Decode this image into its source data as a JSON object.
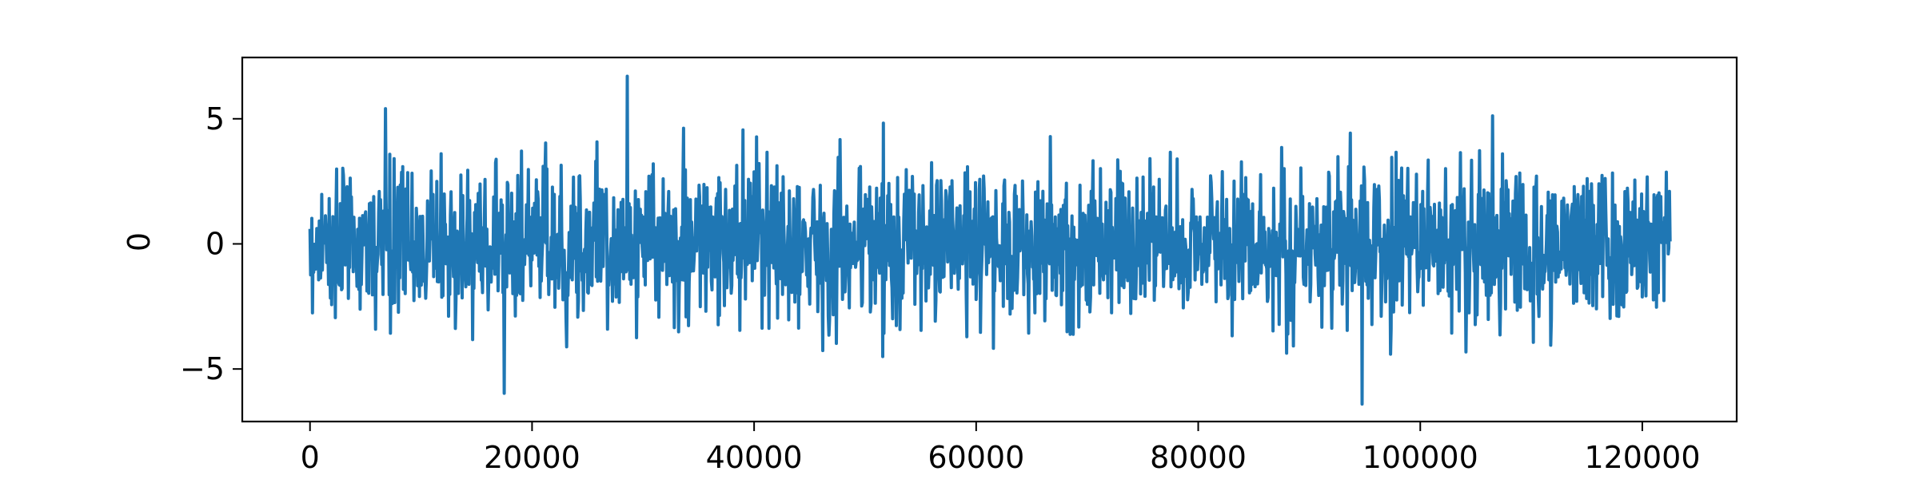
{
  "chart_data": {
    "type": "line",
    "title": "",
    "xlabel": "",
    "ylabel": "0",
    "xlim": [
      -6100,
      128500
    ],
    "ylim": [
      -7.1,
      7.45
    ],
    "x_ticks": [
      0,
      20000,
      40000,
      60000,
      80000,
      100000,
      120000
    ],
    "x_tick_labels": [
      "0",
      "20000",
      "40000",
      "60000",
      "80000",
      "100000",
      "120000"
    ],
    "y_ticks": [
      -5,
      0,
      5
    ],
    "y_tick_labels": [
      "−5",
      "0",
      "5"
    ],
    "grid": false,
    "legend": "none",
    "series": [
      {
        "color": "#1f77b4",
        "x_range": [
          0,
          122500
        ],
        "typical_range": [
          -3.2,
          3.2
        ],
        "max": 6.7,
        "min": -6.4
      }
    ]
  }
}
